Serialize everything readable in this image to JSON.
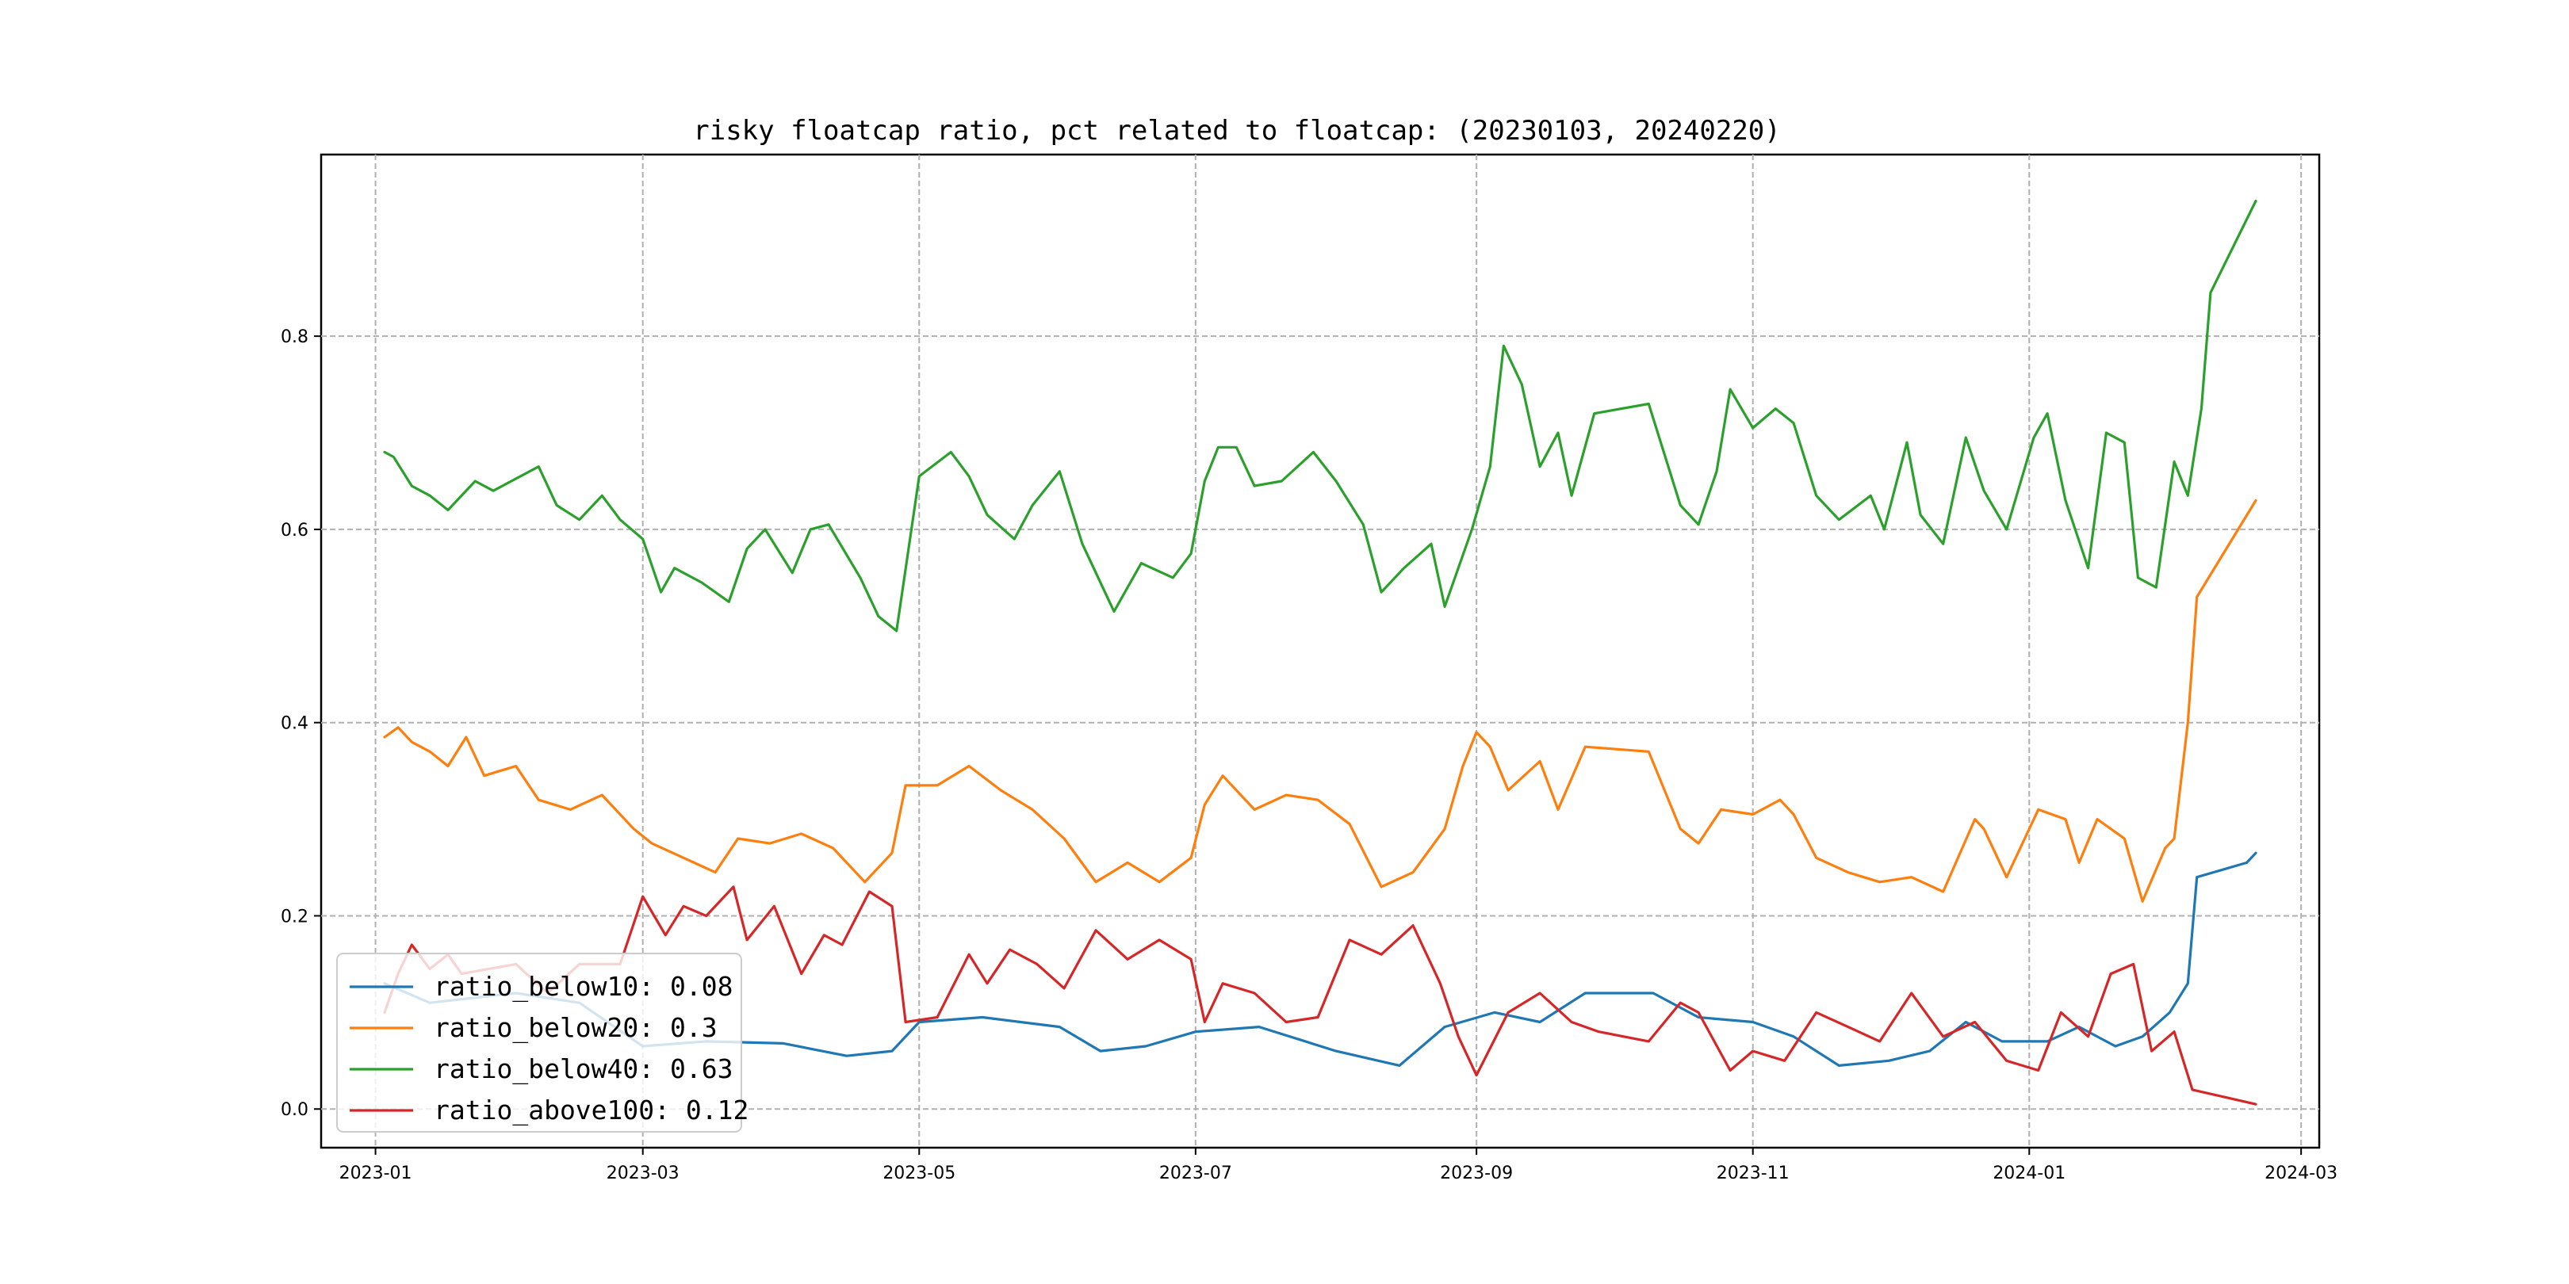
{
  "chart_data": {
    "type": "line",
    "title": "risky floatcap ratio, pct related to floatcap: (20230103, 20240220)",
    "xlabel": "",
    "ylabel": "",
    "x_ticks": [
      "2023-01",
      "2023-03",
      "2023-05",
      "2023-07",
      "2023-09",
      "2023-11",
      "2024-01",
      "2024-03"
    ],
    "y_ticks": [
      "0.0",
      "0.2",
      "0.4",
      "0.6",
      "0.8"
    ],
    "xlim": [
      "2022-12-20",
      "2024-03-05"
    ],
    "ylim": [
      -0.04,
      0.988
    ],
    "grid": true,
    "legend_position": "lower-left",
    "series": [
      {
        "name": "ratio_below10: 0.08",
        "color": "#1f77b4",
        "points": [
          [
            "2023-01-03",
            0.13
          ],
          [
            "2023-01-13",
            0.11
          ],
          [
            "2023-02-01",
            0.12
          ],
          [
            "2023-02-15",
            0.11
          ],
          [
            "2023-03-01",
            0.065
          ],
          [
            "2023-03-15",
            0.07
          ],
          [
            "2023-04-01",
            0.068
          ],
          [
            "2023-04-15",
            0.055
          ],
          [
            "2023-04-25",
            0.06
          ],
          [
            "2023-05-01",
            0.09
          ],
          [
            "2023-05-15",
            0.095
          ],
          [
            "2023-06-01",
            0.085
          ],
          [
            "2023-06-10",
            0.06
          ],
          [
            "2023-06-20",
            0.065
          ],
          [
            "2023-07-01",
            0.08
          ],
          [
            "2023-07-15",
            0.085
          ],
          [
            "2023-08-01",
            0.06
          ],
          [
            "2023-08-15",
            0.045
          ],
          [
            "2023-08-25",
            0.085
          ],
          [
            "2023-09-05",
            0.1
          ],
          [
            "2023-09-15",
            0.09
          ],
          [
            "2023-09-25",
            0.12
          ],
          [
            "2023-10-10",
            0.12
          ],
          [
            "2023-10-20",
            0.095
          ],
          [
            "2023-11-01",
            0.09
          ],
          [
            "2023-11-10",
            0.075
          ],
          [
            "2023-11-20",
            0.045
          ],
          [
            "2023-12-01",
            0.05
          ],
          [
            "2023-12-10",
            0.06
          ],
          [
            "2023-12-18",
            0.09
          ],
          [
            "2023-12-26",
            0.07
          ],
          [
            "2024-01-05",
            0.07
          ],
          [
            "2024-01-12",
            0.085
          ],
          [
            "2024-01-20",
            0.065
          ],
          [
            "2024-01-26",
            0.075
          ],
          [
            "2024-02-01",
            0.1
          ],
          [
            "2024-02-05",
            0.13
          ],
          [
            "2024-02-07",
            0.24
          ],
          [
            "2024-02-18",
            0.255
          ],
          [
            "2024-02-20",
            0.265
          ]
        ]
      },
      {
        "name": "ratio_below20: 0.3",
        "color": "#ff7f0e",
        "points": [
          [
            "2023-01-03",
            0.385
          ],
          [
            "2023-01-06",
            0.395
          ],
          [
            "2023-01-09",
            0.38
          ],
          [
            "2023-01-13",
            0.37
          ],
          [
            "2023-01-17",
            0.355
          ],
          [
            "2023-01-19",
            0.37
          ],
          [
            "2023-01-21",
            0.385
          ],
          [
            "2023-01-25",
            0.345
          ],
          [
            "2023-02-01",
            0.355
          ],
          [
            "2023-02-06",
            0.32
          ],
          [
            "2023-02-13",
            0.31
          ],
          [
            "2023-02-20",
            0.325
          ],
          [
            "2023-02-27",
            0.29
          ],
          [
            "2023-03-03",
            0.275
          ],
          [
            "2023-03-10",
            0.26
          ],
          [
            "2023-03-17",
            0.245
          ],
          [
            "2023-03-22",
            0.28
          ],
          [
            "2023-03-29",
            0.275
          ],
          [
            "2023-04-05",
            0.285
          ],
          [
            "2023-04-12",
            0.27
          ],
          [
            "2023-04-19",
            0.235
          ],
          [
            "2023-04-25",
            0.265
          ],
          [
            "2023-04-28",
            0.335
          ],
          [
            "2023-05-05",
            0.335
          ],
          [
            "2023-05-12",
            0.355
          ],
          [
            "2023-05-19",
            0.33
          ],
          [
            "2023-05-26",
            0.31
          ],
          [
            "2023-06-02",
            0.28
          ],
          [
            "2023-06-09",
            0.235
          ],
          [
            "2023-06-16",
            0.255
          ],
          [
            "2023-06-23",
            0.235
          ],
          [
            "2023-06-30",
            0.26
          ],
          [
            "2023-07-03",
            0.315
          ],
          [
            "2023-07-07",
            0.345
          ],
          [
            "2023-07-14",
            0.31
          ],
          [
            "2023-07-21",
            0.325
          ],
          [
            "2023-07-28",
            0.32
          ],
          [
            "2023-08-04",
            0.295
          ],
          [
            "2023-08-11",
            0.23
          ],
          [
            "2023-08-18",
            0.245
          ],
          [
            "2023-08-25",
            0.29
          ],
          [
            "2023-08-29",
            0.355
          ],
          [
            "2023-09-01",
            0.39
          ],
          [
            "2023-09-04",
            0.375
          ],
          [
            "2023-09-08",
            0.33
          ],
          [
            "2023-09-15",
            0.36
          ],
          [
            "2023-09-19",
            0.31
          ],
          [
            "2023-09-25",
            0.375
          ],
          [
            "2023-10-09",
            0.37
          ],
          [
            "2023-10-16",
            0.29
          ],
          [
            "2023-10-20",
            0.275
          ],
          [
            "2023-10-25",
            0.31
          ],
          [
            "2023-11-01",
            0.305
          ],
          [
            "2023-11-07",
            0.32
          ],
          [
            "2023-11-10",
            0.305
          ],
          [
            "2023-11-15",
            0.26
          ],
          [
            "2023-11-22",
            0.245
          ],
          [
            "2023-11-29",
            0.235
          ],
          [
            "2023-12-06",
            0.24
          ],
          [
            "2023-12-13",
            0.225
          ],
          [
            "2023-12-20",
            0.3
          ],
          [
            "2023-12-22",
            0.29
          ],
          [
            "2023-12-27",
            0.24
          ],
          [
            "2024-01-03",
            0.31
          ],
          [
            "2024-01-09",
            0.3
          ],
          [
            "2024-01-12",
            0.255
          ],
          [
            "2024-01-16",
            0.3
          ],
          [
            "2024-01-22",
            0.28
          ],
          [
            "2024-01-26",
            0.215
          ],
          [
            "2024-01-31",
            0.27
          ],
          [
            "2024-02-02",
            0.28
          ],
          [
            "2024-02-05",
            0.4
          ],
          [
            "2024-02-07",
            0.53
          ],
          [
            "2024-02-20",
            0.63
          ]
        ]
      },
      {
        "name": "ratio_below40: 0.63",
        "color": "#2ca02c",
        "points": [
          [
            "2023-01-03",
            0.68
          ],
          [
            "2023-01-05",
            0.675
          ],
          [
            "2023-01-09",
            0.645
          ],
          [
            "2023-01-13",
            0.635
          ],
          [
            "2023-01-17",
            0.62
          ],
          [
            "2023-01-19",
            0.63
          ],
          [
            "2023-01-23",
            0.65
          ],
          [
            "2023-01-27",
            0.64
          ],
          [
            "2023-02-06",
            0.665
          ],
          [
            "2023-02-10",
            0.625
          ],
          [
            "2023-02-15",
            0.61
          ],
          [
            "2023-02-20",
            0.635
          ],
          [
            "2023-02-24",
            0.61
          ],
          [
            "2023-03-01",
            0.59
          ],
          [
            "2023-03-05",
            0.535
          ],
          [
            "2023-03-08",
            0.56
          ],
          [
            "2023-03-14",
            0.545
          ],
          [
            "2023-03-20",
            0.525
          ],
          [
            "2023-03-24",
            0.58
          ],
          [
            "2023-03-28",
            0.6
          ],
          [
            "2023-04-03",
            0.555
          ],
          [
            "2023-04-07",
            0.6
          ],
          [
            "2023-04-11",
            0.605
          ],
          [
            "2023-04-18",
            0.55
          ],
          [
            "2023-04-22",
            0.51
          ],
          [
            "2023-04-26",
            0.495
          ],
          [
            "2023-05-01",
            0.655
          ],
          [
            "2023-05-08",
            0.68
          ],
          [
            "2023-05-12",
            0.655
          ],
          [
            "2023-05-16",
            0.615
          ],
          [
            "2023-05-22",
            0.59
          ],
          [
            "2023-05-26",
            0.625
          ],
          [
            "2023-06-01",
            0.66
          ],
          [
            "2023-06-06",
            0.585
          ],
          [
            "2023-06-13",
            0.515
          ],
          [
            "2023-06-19",
            0.565
          ],
          [
            "2023-06-26",
            0.55
          ],
          [
            "2023-06-30",
            0.575
          ],
          [
            "2023-07-03",
            0.65
          ],
          [
            "2023-07-06",
            0.685
          ],
          [
            "2023-07-10",
            0.685
          ],
          [
            "2023-07-14",
            0.645
          ],
          [
            "2023-07-20",
            0.65
          ],
          [
            "2023-07-27",
            0.68
          ],
          [
            "2023-08-01",
            0.65
          ],
          [
            "2023-08-07",
            0.605
          ],
          [
            "2023-08-11",
            0.535
          ],
          [
            "2023-08-16",
            0.56
          ],
          [
            "2023-08-22",
            0.585
          ],
          [
            "2023-08-25",
            0.52
          ],
          [
            "2023-08-31",
            0.6
          ],
          [
            "2023-09-04",
            0.665
          ],
          [
            "2023-09-07",
            0.79
          ],
          [
            "2023-09-11",
            0.75
          ],
          [
            "2023-09-15",
            0.665
          ],
          [
            "2023-09-19",
            0.7
          ],
          [
            "2023-09-22",
            0.635
          ],
          [
            "2023-09-27",
            0.72
          ],
          [
            "2023-10-09",
            0.73
          ],
          [
            "2023-10-16",
            0.625
          ],
          [
            "2023-10-20",
            0.605
          ],
          [
            "2023-10-24",
            0.66
          ],
          [
            "2023-10-27",
            0.745
          ],
          [
            "2023-11-01",
            0.705
          ],
          [
            "2023-11-06",
            0.725
          ],
          [
            "2023-11-10",
            0.71
          ],
          [
            "2023-11-15",
            0.635
          ],
          [
            "2023-11-20",
            0.61
          ],
          [
            "2023-11-27",
            0.635
          ],
          [
            "2023-11-30",
            0.6
          ],
          [
            "2023-12-05",
            0.69
          ],
          [
            "2023-12-08",
            0.615
          ],
          [
            "2023-12-13",
            0.585
          ],
          [
            "2023-12-18",
            0.695
          ],
          [
            "2023-12-22",
            0.64
          ],
          [
            "2023-12-27",
            0.6
          ],
          [
            "2024-01-02",
            0.695
          ],
          [
            "2024-01-05",
            0.72
          ],
          [
            "2024-01-09",
            0.63
          ],
          [
            "2024-01-14",
            0.56
          ],
          [
            "2024-01-18",
            0.7
          ],
          [
            "2024-01-22",
            0.69
          ],
          [
            "2024-01-25",
            0.55
          ],
          [
            "2024-01-29",
            0.54
          ],
          [
            "2024-02-02",
            0.67
          ],
          [
            "2024-02-05",
            0.635
          ],
          [
            "2024-02-08",
            0.725
          ],
          [
            "2024-02-10",
            0.845
          ],
          [
            "2024-02-20",
            0.94
          ]
        ]
      },
      {
        "name": "ratio_above100: 0.12",
        "color": "#d62728",
        "points": [
          [
            "2023-01-03",
            0.1
          ],
          [
            "2023-01-06",
            0.14
          ],
          [
            "2023-01-09",
            0.17
          ],
          [
            "2023-01-13",
            0.145
          ],
          [
            "2023-01-17",
            0.16
          ],
          [
            "2023-01-20",
            0.14
          ],
          [
            "2023-02-01",
            0.15
          ],
          [
            "2023-02-08",
            0.12
          ],
          [
            "2023-02-15",
            0.15
          ],
          [
            "2023-02-24",
            0.15
          ],
          [
            "2023-03-01",
            0.22
          ],
          [
            "2023-03-06",
            0.18
          ],
          [
            "2023-03-10",
            0.21
          ],
          [
            "2023-03-15",
            0.2
          ],
          [
            "2023-03-21",
            0.23
          ],
          [
            "2023-03-24",
            0.175
          ],
          [
            "2023-03-30",
            0.21
          ],
          [
            "2023-04-05",
            0.14
          ],
          [
            "2023-04-10",
            0.18
          ],
          [
            "2023-04-14",
            0.17
          ],
          [
            "2023-04-20",
            0.225
          ],
          [
            "2023-04-25",
            0.21
          ],
          [
            "2023-04-28",
            0.09
          ],
          [
            "2023-05-05",
            0.095
          ],
          [
            "2023-05-12",
            0.16
          ],
          [
            "2023-05-16",
            0.13
          ],
          [
            "2023-05-21",
            0.165
          ],
          [
            "2023-05-27",
            0.15
          ],
          [
            "2023-06-02",
            0.125
          ],
          [
            "2023-06-09",
            0.185
          ],
          [
            "2023-06-16",
            0.155
          ],
          [
            "2023-06-23",
            0.175
          ],
          [
            "2023-06-30",
            0.155
          ],
          [
            "2023-07-03",
            0.09
          ],
          [
            "2023-07-07",
            0.13
          ],
          [
            "2023-07-14",
            0.12
          ],
          [
            "2023-07-21",
            0.09
          ],
          [
            "2023-07-28",
            0.095
          ],
          [
            "2023-08-04",
            0.175
          ],
          [
            "2023-08-11",
            0.16
          ],
          [
            "2023-08-18",
            0.19
          ],
          [
            "2023-08-24",
            0.13
          ],
          [
            "2023-08-28",
            0.075
          ],
          [
            "2023-09-01",
            0.035
          ],
          [
            "2023-09-08",
            0.1
          ],
          [
            "2023-09-15",
            0.12
          ],
          [
            "2023-09-22",
            0.09
          ],
          [
            "2023-09-28",
            0.08
          ],
          [
            "2023-10-09",
            0.07
          ],
          [
            "2023-10-16",
            0.11
          ],
          [
            "2023-10-20",
            0.1
          ],
          [
            "2023-10-27",
            0.04
          ],
          [
            "2023-11-01",
            0.06
          ],
          [
            "2023-11-08",
            0.05
          ],
          [
            "2023-11-15",
            0.1
          ],
          [
            "2023-11-22",
            0.085
          ],
          [
            "2023-11-29",
            0.07
          ],
          [
            "2023-12-06",
            0.12
          ],
          [
            "2023-12-13",
            0.075
          ],
          [
            "2023-12-20",
            0.09
          ],
          [
            "2023-12-27",
            0.05
          ],
          [
            "2024-01-03",
            0.04
          ],
          [
            "2024-01-08",
            0.1
          ],
          [
            "2024-01-14",
            0.075
          ],
          [
            "2024-01-19",
            0.14
          ],
          [
            "2024-01-24",
            0.15
          ],
          [
            "2024-01-28",
            0.06
          ],
          [
            "2024-02-02",
            0.08
          ],
          [
            "2024-02-06",
            0.02
          ],
          [
            "2024-02-20",
            0.005
          ]
        ]
      }
    ]
  }
}
